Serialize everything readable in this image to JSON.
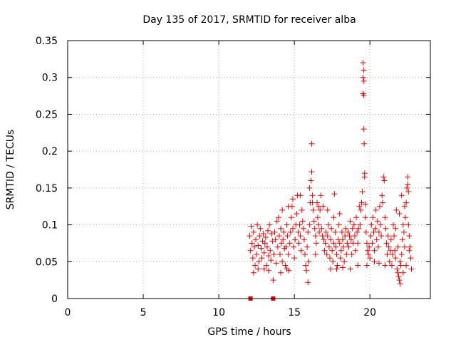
{
  "chart_data": {
    "type": "scatter",
    "title": "Day 135 of 2017, SRMTID for receiver alba",
    "xlabel": "GPS time / hours",
    "ylabel": "SRMTID / TECUs",
    "xlim": [
      0,
      24
    ],
    "ylim": [
      0,
      0.35
    ],
    "xticks": [
      0,
      5,
      10,
      15,
      20
    ],
    "xtick_labels": [
      "0",
      "5",
      "10",
      "15",
      "20"
    ],
    "yticks": [
      0,
      0.05,
      0.1,
      0.15,
      0.2,
      0.25,
      0.3,
      0.35
    ],
    "ytick_labels": [
      "0",
      "0.05",
      "0.1",
      "0.15",
      "0.2",
      "0.25",
      "0.3",
      "0.35"
    ],
    "grid": true,
    "marker": "plus",
    "color": "#ee0000",
    "series": [
      {
        "name": "SRMTID",
        "points": [
          [
            12.1,
            0.0,
            "square"
          ],
          [
            13.6,
            0.0,
            "square"
          ],
          [
            12.05,
            0.085
          ],
          [
            12.1,
            0.065
          ],
          [
            12.15,
            0.098
          ],
          [
            12.2,
            0.075
          ],
          [
            12.25,
            0.055
          ],
          [
            12.3,
            0.09
          ],
          [
            12.35,
            0.07
          ],
          [
            12.4,
            0.045
          ],
          [
            12.45,
            0.08
          ],
          [
            12.5,
            0.06
          ],
          [
            12.55,
            0.1
          ],
          [
            12.6,
            0.072
          ],
          [
            12.65,
            0.05
          ],
          [
            12.7,
            0.085
          ],
          [
            12.75,
            0.095
          ],
          [
            12.8,
            0.068
          ],
          [
            12.85,
            0.055
          ],
          [
            12.9,
            0.078
          ],
          [
            12.95,
            0.088
          ],
          [
            13.0,
            0.062
          ],
          [
            13.05,
            0.075
          ],
          [
            13.1,
            0.083
          ],
          [
            13.15,
            0.045
          ],
          [
            13.2,
            0.07
          ],
          [
            13.25,
            0.092
          ],
          [
            13.3,
            0.058
          ],
          [
            13.35,
            0.1
          ],
          [
            13.4,
            0.065
          ],
          [
            13.45,
            0.052
          ],
          [
            13.5,
            0.088
          ],
          [
            13.55,
            0.078
          ],
          [
            13.6,
            0.025
          ],
          [
            13.65,
            0.06
          ],
          [
            13.7,
            0.09
          ],
          [
            13.75,
            0.08
          ],
          [
            13.8,
            0.048
          ],
          [
            12.3,
            0.035
          ],
          [
            12.6,
            0.04
          ],
          [
            13.0,
            0.04
          ],
          [
            13.3,
            0.038
          ],
          [
            13.85,
            0.105
          ],
          [
            13.9,
            0.07
          ],
          [
            13.95,
            0.11
          ],
          [
            14.0,
            0.085
          ],
          [
            14.05,
            0.06
          ],
          [
            14.1,
            0.095
          ],
          [
            14.15,
            0.075
          ],
          [
            14.2,
            0.05
          ],
          [
            14.25,
            0.08
          ],
          [
            14.3,
            0.09
          ],
          [
            14.35,
            0.068
          ],
          [
            14.4,
            0.045
          ],
          [
            14.45,
            0.07
          ],
          [
            14.5,
            0.1
          ],
          [
            14.55,
            0.085
          ],
          [
            14.6,
            0.06
          ],
          [
            14.65,
            0.038
          ],
          [
            14.7,
            0.075
          ],
          [
            14.75,
            0.09
          ],
          [
            14.8,
            0.11
          ],
          [
            14.85,
            0.125
          ],
          [
            14.9,
            0.095
          ],
          [
            14.95,
            0.07
          ],
          [
            15.0,
            0.055
          ],
          [
            15.05,
            0.08
          ],
          [
            15.1,
            0.1
          ],
          [
            15.15,
            0.115
          ],
          [
            15.2,
            0.14
          ],
          [
            15.25,
            0.09
          ],
          [
            15.3,
            0.075
          ],
          [
            15.35,
            0.1
          ],
          [
            15.4,
            0.085
          ],
          [
            15.45,
            0.065
          ],
          [
            15.5,
            0.12
          ],
          [
            15.55,
            0.105
          ],
          [
            15.6,
            0.095
          ],
          [
            14.2,
            0.12
          ],
          [
            14.6,
            0.125
          ],
          [
            14.9,
            0.135
          ],
          [
            15.4,
            0.14
          ],
          [
            14.1,
            0.035
          ],
          [
            14.5,
            0.04
          ],
          [
            15.65,
            0.08
          ],
          [
            15.7,
            0.06
          ],
          [
            15.75,
            0.045
          ],
          [
            15.8,
            0.038
          ],
          [
            15.85,
            0.07
          ],
          [
            15.9,
            0.09
          ],
          [
            15.95,
            0.05
          ],
          [
            16.0,
            0.1
          ],
          [
            16.05,
            0.13
          ],
          [
            16.1,
            0.16
          ],
          [
            16.15,
            0.172
          ],
          [
            16.15,
            0.21
          ],
          [
            16.2,
            0.14
          ],
          [
            16.25,
            0.12
          ],
          [
            16.3,
            0.105
          ],
          [
            16.35,
            0.095
          ],
          [
            16.4,
            0.085
          ],
          [
            16.45,
            0.075
          ],
          [
            16.5,
            0.13
          ],
          [
            16.55,
            0.11
          ],
          [
            16.6,
            0.1
          ],
          [
            16.65,
            0.09
          ],
          [
            16.7,
            0.12
          ],
          [
            16.75,
            0.14
          ],
          [
            16.8,
            0.095
          ],
          [
            16.85,
            0.085
          ],
          [
            16.9,
            0.125
          ],
          [
            16.95,
            0.08
          ],
          [
            17.0,
            0.065
          ],
          [
            15.9,
            0.022
          ],
          [
            16.0,
            0.15
          ],
          [
            16.2,
            0.13
          ],
          [
            16.6,
            0.125
          ],
          [
            16.4,
            0.06
          ],
          [
            17.05,
            0.075
          ],
          [
            17.1,
            0.09
          ],
          [
            17.15,
            0.06
          ],
          [
            17.2,
            0.085
          ],
          [
            17.25,
            0.1
          ],
          [
            17.3,
            0.07
          ],
          [
            17.35,
            0.055
          ],
          [
            17.4,
            0.08
          ],
          [
            17.45,
            0.095
          ],
          [
            17.5,
            0.065
          ],
          [
            17.55,
            0.05
          ],
          [
            17.6,
            0.075
          ],
          [
            17.65,
            0.142
          ],
          [
            17.7,
            0.09
          ],
          [
            17.75,
            0.07
          ],
          [
            17.8,
            0.06
          ],
          [
            17.85,
            0.045
          ],
          [
            17.9,
            0.08
          ],
          [
            17.95,
            0.1
          ],
          [
            18.0,
            0.075
          ],
          [
            18.05,
            0.055
          ],
          [
            18.1,
            0.065
          ],
          [
            18.15,
            0.09
          ],
          [
            18.2,
            0.08
          ],
          [
            18.25,
            0.07
          ],
          [
            18.3,
            0.05
          ],
          [
            18.35,
            0.085
          ],
          [
            18.4,
            0.095
          ],
          [
            18.45,
            0.06
          ],
          [
            18.5,
            0.075
          ],
          [
            17.4,
            0.04
          ],
          [
            17.8,
            0.04
          ],
          [
            18.2,
            0.042
          ],
          [
            17.2,
            0.12
          ],
          [
            17.6,
            0.11
          ],
          [
            18.0,
            0.115
          ],
          [
            18.55,
            0.09
          ],
          [
            18.6,
            0.07
          ],
          [
            18.65,
            0.085
          ],
          [
            18.7,
            0.105
          ],
          [
            18.75,
            0.08
          ],
          [
            18.8,
            0.06
          ],
          [
            18.85,
            0.095
          ],
          [
            18.9,
            0.075
          ],
          [
            18.95,
            0.1
          ],
          [
            19.0,
            0.085
          ],
          [
            19.05,
            0.065
          ],
          [
            19.1,
            0.11
          ],
          [
            19.15,
            0.09
          ],
          [
            19.2,
            0.075
          ],
          [
            19.25,
            0.095
          ],
          [
            19.3,
            0.125
          ],
          [
            19.35,
            0.1
          ],
          [
            19.4,
            0.12
          ],
          [
            19.45,
            0.13
          ],
          [
            19.5,
            0.145
          ],
          [
            19.55,
            0.32
          ],
          [
            19.55,
            0.3
          ],
          [
            19.6,
            0.31
          ],
          [
            19.6,
            0.295
          ],
          [
            19.55,
            0.278
          ],
          [
            19.6,
            0.276
          ],
          [
            19.6,
            0.23
          ],
          [
            19.62,
            0.21
          ],
          [
            19.65,
            0.17
          ],
          [
            19.65,
            0.165
          ],
          [
            19.7,
            0.128
          ],
          [
            19.7,
            0.11
          ],
          [
            19.75,
            0.09
          ],
          [
            19.8,
            0.075
          ],
          [
            19.85,
            0.065
          ],
          [
            19.9,
            0.06
          ],
          [
            19.95,
            0.07
          ],
          [
            20.0,
            0.055
          ],
          [
            18.7,
            0.04
          ],
          [
            19.2,
            0.045
          ],
          [
            19.8,
            0.045
          ],
          [
            20.05,
            0.085
          ],
          [
            20.1,
            0.1
          ],
          [
            20.15,
            0.075
          ],
          [
            20.2,
            0.11
          ],
          [
            20.25,
            0.09
          ],
          [
            20.3,
            0.065
          ],
          [
            20.35,
            0.095
          ],
          [
            20.4,
            0.12
          ],
          [
            20.45,
            0.08
          ],
          [
            20.5,
            0.105
          ],
          [
            20.55,
            0.07
          ],
          [
            20.6,
            0.09
          ],
          [
            20.65,
            0.125
          ],
          [
            20.7,
            0.1
          ],
          [
            20.75,
            0.085
          ],
          [
            20.8,
            0.14
          ],
          [
            20.85,
            0.13
          ],
          [
            20.9,
            0.165
          ],
          [
            20.95,
            0.16
          ],
          [
            21.0,
            0.11
          ],
          [
            21.05,
            0.095
          ],
          [
            21.1,
            0.075
          ],
          [
            21.15,
            0.06
          ],
          [
            21.2,
            0.085
          ],
          [
            21.25,
            0.07
          ],
          [
            21.3,
            0.05
          ],
          [
            21.35,
            0.065
          ],
          [
            21.4,
            0.08
          ],
          [
            21.45,
            0.045
          ],
          [
            21.5,
            0.06
          ],
          [
            20.3,
            0.05
          ],
          [
            20.6,
            0.048
          ],
          [
            21.0,
            0.045
          ],
          [
            21.55,
            0.1
          ],
          [
            21.6,
            0.085
          ],
          [
            21.65,
            0.065
          ],
          [
            21.7,
            0.055
          ],
          [
            21.75,
            0.12
          ],
          [
            21.8,
            0.04
          ],
          [
            21.85,
            0.035
          ],
          [
            21.9,
            0.03
          ],
          [
            21.95,
            0.025
          ],
          [
            22.0,
            0.02
          ],
          [
            22.05,
            0.045
          ],
          [
            22.1,
            0.06
          ],
          [
            22.15,
            0.08
          ],
          [
            22.2,
            0.1
          ],
          [
            22.25,
            0.09
          ],
          [
            22.3,
            0.07
          ],
          [
            22.35,
            0.11
          ],
          [
            22.4,
            0.13
          ],
          [
            22.45,
            0.15
          ],
          [
            22.5,
            0.165
          ],
          [
            22.5,
            0.155
          ],
          [
            22.55,
            0.145
          ],
          [
            22.55,
            0.1
          ],
          [
            22.6,
            0.085
          ],
          [
            22.65,
            0.07
          ],
          [
            22.7,
            0.055
          ],
          [
            22.75,
            0.04
          ],
          [
            21.95,
            0.115
          ],
          [
            22.1,
            0.14
          ],
          [
            22.3,
            0.125
          ],
          [
            21.7,
            0.095
          ],
          [
            21.85,
            0.07
          ],
          [
            22.0,
            0.05
          ],
          [
            22.2,
            0.035
          ],
          [
            22.4,
            0.045
          ],
          [
            22.6,
            0.065
          ]
        ]
      }
    ]
  }
}
